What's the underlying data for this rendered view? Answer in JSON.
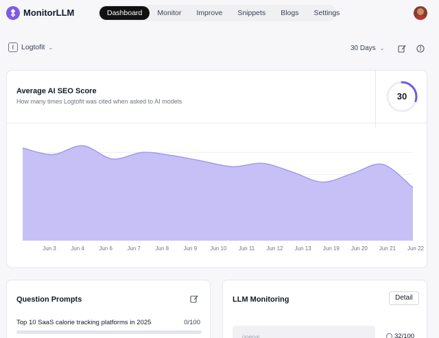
{
  "app": {
    "brand": "MonitorLLM",
    "nav": [
      {
        "label": "Dashboard",
        "active": true
      },
      {
        "label": "Monitor",
        "active": false
      },
      {
        "label": "Improve",
        "active": false
      },
      {
        "label": "Snippets",
        "active": false
      },
      {
        "label": "Blogs",
        "active": false
      },
      {
        "label": "Settings",
        "active": false
      }
    ],
    "accent": "#7c5ce6"
  },
  "toolbar": {
    "project": "Logtofit",
    "range": "30 Days",
    "icons": [
      "edit-icon",
      "info-icon"
    ]
  },
  "score_card": {
    "title": "Average AI SEO Score",
    "subtitle": "How many times Logtofit was cited when asked to AI models",
    "score": "30",
    "score_fraction": 0.3
  },
  "chart_data": {
    "type": "area",
    "x": [
      "Jun 3",
      "Jun 4",
      "Jun 6",
      "Jun 7",
      "Jun 8",
      "Jun 9",
      "Jun 10",
      "Jun 11",
      "Jun 12",
      "Jun 13",
      "Jun 19",
      "Jun 20",
      "Jun 21",
      "Jun 22"
    ],
    "series": [
      {
        "values": [
          84,
          78,
          86,
          74,
          80,
          77,
          72,
          67,
          70,
          62,
          53,
          61,
          69,
          48
        ]
      }
    ],
    "ylim": [
      0,
      100
    ],
    "grid": true,
    "fill": "#c4bdf6",
    "stroke": "#a498ee"
  },
  "prompts_card": {
    "title": "Question Prompts",
    "items": [
      {
        "text": "Top 10 SaaS calorie tracking platforms in 2025",
        "count": "0/100",
        "fraction": 0
      }
    ]
  },
  "llm_card": {
    "title": "LLM Monitoring",
    "detail_label": "Detail",
    "models": [
      {
        "name": "openai",
        "score": "32/100",
        "fraction": 0.32
      }
    ]
  }
}
